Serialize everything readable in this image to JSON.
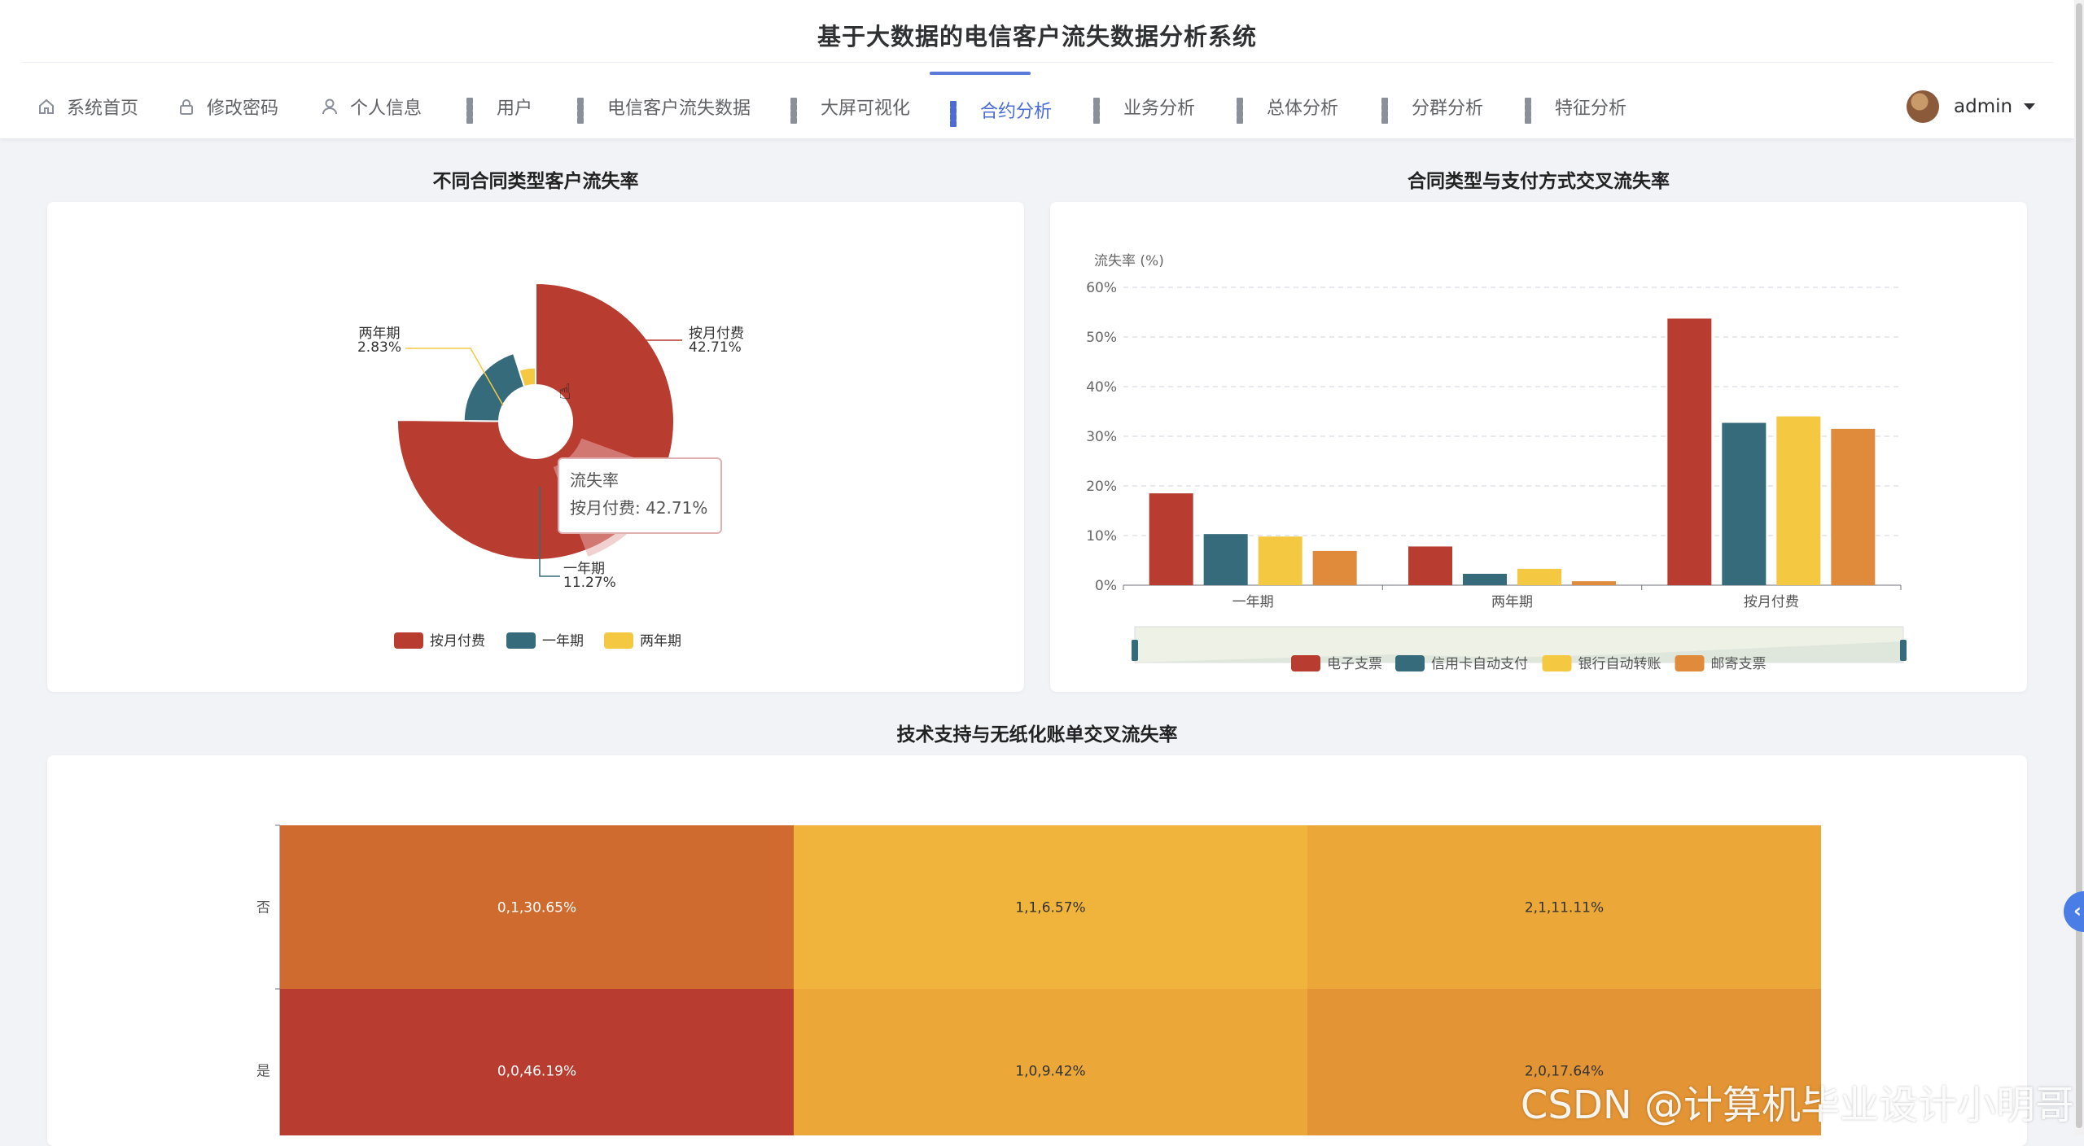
{
  "app": {
    "title": "基于大数据的电信客户流失数据分析系统"
  },
  "nav": {
    "items": [
      {
        "label": "系统首页",
        "icon": "home-icon"
      },
      {
        "label": "修改密码",
        "icon": "lock-icon"
      },
      {
        "label": "个人信息",
        "icon": "user-icon"
      },
      {
        "label": "用户",
        "icon": "grid-icon"
      },
      {
        "label": "电信客户流失数据",
        "icon": "grid-icon"
      },
      {
        "label": "大屏可视化",
        "icon": "grid-icon"
      },
      {
        "label": "合约分析",
        "icon": "grid-icon",
        "active": true
      },
      {
        "label": "业务分析",
        "icon": "grid-icon"
      },
      {
        "label": "总体分析",
        "icon": "grid-icon"
      },
      {
        "label": "分群分析",
        "icon": "grid-icon"
      },
      {
        "label": "特征分析",
        "icon": "grid-icon"
      }
    ],
    "accent_color": "#4a6cd4"
  },
  "user": {
    "name": "admin",
    "icon": "chevron-down-icon"
  },
  "sections": {
    "contract_churn": {
      "title": "不同合同类型客户流失率"
    },
    "contract_payment": {
      "title": "合同类型与支付方式交叉流失率"
    },
    "tech_paperless": {
      "title": "技术支持与无纸化账单交叉流失率"
    }
  },
  "tooltip": {
    "title": "流失率",
    "text": "按月付费: 42.71%"
  },
  "watermark": "CSDN @计算机毕业设计小明哥",
  "chart_data": [
    {
      "type": "pie",
      "variant": "rose",
      "title": "不同合同类型客户流失率",
      "labels": [
        "按月付费",
        "一年期",
        "两年期"
      ],
      "values": [
        42.71,
        11.27,
        2.83
      ],
      "value_labels": [
        "42.71%",
        "11.27%",
        "2.83%"
      ],
      "colors": [
        "#b83c2f",
        "#356b7b",
        "#f5c842"
      ],
      "legend": "bottom-center",
      "start_angle_deg": 90
    },
    {
      "type": "bar",
      "title": "合同类型与支付方式交叉流失率",
      "ylabel": "流失率 (%)",
      "categories": [
        "一年期",
        "两年期",
        "按月付费"
      ],
      "series": [
        {
          "name": "电子支票",
          "values": [
            18.5,
            7.8,
            53.7
          ],
          "color": "#b83c2f"
        },
        {
          "name": "信用卡自动支付",
          "values": [
            10.3,
            2.3,
            32.7
          ],
          "color": "#356b7b"
        },
        {
          "name": "银行自动转账",
          "values": [
            9.8,
            3.3,
            34.0
          ],
          "color": "#f5c842"
        },
        {
          "name": "邮寄支票",
          "values": [
            6.9,
            0.8,
            31.5
          ],
          "color": "#e08a3c"
        }
      ],
      "ylim": [
        0,
        60
      ],
      "yticks": [
        "0%",
        "10%",
        "20%",
        "30%",
        "40%",
        "50%",
        "60%"
      ],
      "ytick_values": [
        0,
        10,
        20,
        30,
        40,
        50,
        60
      ],
      "grid": true,
      "legend": "bottom-center",
      "datazoom": true
    },
    {
      "type": "heatmap",
      "title": "技术支持与无纸化账单交叉流失率",
      "y_categories": [
        "否",
        "是"
      ],
      "cells": [
        {
          "row": "否",
          "label": "0,1,30.65%",
          "value": 30.65,
          "color": "#cf6b2e"
        },
        {
          "row": "否",
          "label": "1,1,6.57%",
          "value": 6.57,
          "color": "#f0b43c"
        },
        {
          "row": "否",
          "label": "2,1,11.11%",
          "value": 11.11,
          "color": "#eba838"
        },
        {
          "row": "是",
          "label": "0,0,46.19%",
          "value": 46.19,
          "color": "#b83c2f"
        },
        {
          "row": "是",
          "label": "1,0,9.42%",
          "value": 9.42,
          "color": "#eba838"
        },
        {
          "row": "是",
          "label": "2,0,17.64%",
          "value": 17.64,
          "color": "#e39434"
        }
      ]
    }
  ]
}
